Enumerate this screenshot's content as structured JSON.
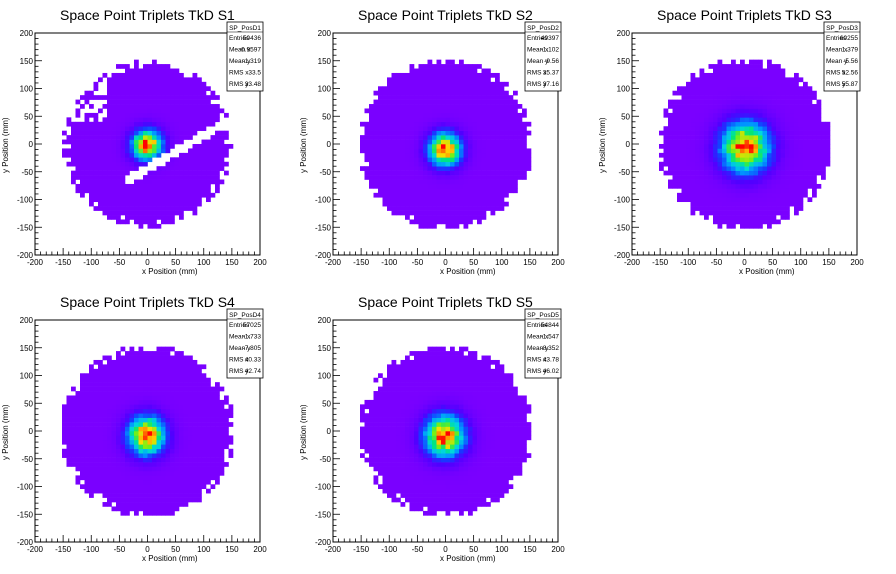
{
  "chart_data": [
    {
      "type": "heatmap",
      "title": "Space Point Triplets TkD S1",
      "xlabel": "x Position (mm)",
      "ylabel": "y Position (mm)",
      "xlim": [
        -200,
        200
      ],
      "ylim": [
        -200,
        200
      ],
      "xticks": [
        "-200",
        "-150",
        "-100",
        "-50",
        "0",
        "50",
        "100",
        "150",
        "200"
      ],
      "yticks": [
        "-200",
        "-150",
        "-100",
        "-50",
        "0",
        "50",
        "100",
        "150",
        "200"
      ],
      "stats": {
        "name": "SP_PosD1",
        "rows": [
          {
            "label": "Entries",
            "value": "50436"
          },
          {
            "label": "Mean x",
            "value": "-0.9597"
          },
          {
            "label": "Mean y",
            "value": "-1.319"
          },
          {
            "label": "RMS x",
            "value": "33.5"
          },
          {
            "label": "RMS y",
            "value": "33.48"
          }
        ]
      },
      "distribution": {
        "mean_x": -0.9597,
        "mean_y": -1.319,
        "rms_x": 33.5,
        "rms_y": 33.48,
        "extent_mm": 150,
        "gap_band": true
      }
    },
    {
      "type": "heatmap",
      "title": "Space Point Triplets TkD S2",
      "xlabel": "x Position (mm)",
      "ylabel": "y Position (mm)",
      "xlim": [
        -200,
        200
      ],
      "ylim": [
        -200,
        200
      ],
      "xticks": [
        "-200",
        "-150",
        "-100",
        "-50",
        "0",
        "50",
        "100",
        "150",
        "200"
      ],
      "yticks": [
        "-200",
        "-150",
        "-100",
        "-50",
        "0",
        "50",
        "100",
        "150",
        "200"
      ],
      "stats": {
        "name": "SP_PosD2",
        "rows": [
          {
            "label": "Entries",
            "value": "49397"
          },
          {
            "label": "Mean x",
            "value": "-1.102"
          },
          {
            "label": "Mean y",
            "value": "-9.56"
          },
          {
            "label": "RMS x",
            "value": "35.37"
          },
          {
            "label": "RMS y",
            "value": "37.16"
          }
        ]
      },
      "distribution": {
        "mean_x": -1.102,
        "mean_y": -9.56,
        "rms_x": 35.37,
        "rms_y": 37.16,
        "extent_mm": 155,
        "gap_band": false
      }
    },
    {
      "type": "heatmap",
      "title": "Space Point Triplets TkD S3",
      "xlabel": "x Position (mm)",
      "ylabel": "y Position (mm)",
      "xlim": [
        -200,
        200
      ],
      "ylim": [
        -200,
        200
      ],
      "xticks": [
        "-200",
        "-150",
        "-100",
        "-50",
        "0",
        "50",
        "100",
        "150",
        "200"
      ],
      "yticks": [
        "-200",
        "-150",
        "-100",
        "-50",
        "0",
        "50",
        "100",
        "150",
        "200"
      ],
      "stats": {
        "name": "SP_PosD3",
        "rows": [
          {
            "label": "Entries",
            "value": "60255"
          },
          {
            "label": "Mean x",
            "value": "1.379"
          },
          {
            "label": "Mean y",
            "value": "-5.56"
          },
          {
            "label": "RMS x",
            "value": "52.56"
          },
          {
            "label": "RMS y",
            "value": "55.87"
          }
        ]
      },
      "distribution": {
        "mean_x": 1.379,
        "mean_y": -5.56,
        "rms_x": 52.56,
        "rms_y": 55.87,
        "extent_mm": 155,
        "gap_band": false
      }
    },
    {
      "type": "heatmap",
      "title": "Space Point Triplets TkD S4",
      "xlabel": "x Position (mm)",
      "ylabel": "y Position (mm)",
      "xlim": [
        -200,
        200
      ],
      "ylim": [
        -200,
        200
      ],
      "xticks": [
        "-200",
        "-150",
        "-100",
        "-50",
        "0",
        "50",
        "100",
        "150",
        "200"
      ],
      "yticks": [
        "-200",
        "-150",
        "-100",
        "-50",
        "0",
        "50",
        "100",
        "150",
        "200"
      ],
      "stats": {
        "name": "SP_PosD4",
        "rows": [
          {
            "label": "Entries",
            "value": "57025"
          },
          {
            "label": "Mean x",
            "value": "-1.733"
          },
          {
            "label": "Mean y",
            "value": "-7.805"
          },
          {
            "label": "RMS x",
            "value": "40.33"
          },
          {
            "label": "RMS y",
            "value": "42.74"
          }
        ]
      },
      "distribution": {
        "mean_x": -1.733,
        "mean_y": -7.805,
        "rms_x": 40.33,
        "rms_y": 42.74,
        "extent_mm": 155,
        "gap_band": false
      }
    },
    {
      "type": "heatmap",
      "title": "Space Point Triplets TkD S5",
      "xlabel": "x Position (mm)",
      "ylabel": "y Position (mm)",
      "xlim": [
        -200,
        200
      ],
      "ylim": [
        -200,
        200
      ],
      "xticks": [
        "-200",
        "-150",
        "-100",
        "-50",
        "0",
        "50",
        "100",
        "150",
        "200"
      ],
      "yticks": [
        "-200",
        "-150",
        "-100",
        "-50",
        "0",
        "50",
        "100",
        "150",
        "200"
      ],
      "stats": {
        "name": "SP_PosD5",
        "rows": [
          {
            "label": "Entries",
            "value": "54844"
          },
          {
            "label": "Mean x",
            "value": "-1.547"
          },
          {
            "label": "Mean y",
            "value": "-8.352"
          },
          {
            "label": "RMS x",
            "value": "43.78"
          },
          {
            "label": "RMS y",
            "value": "46.02"
          }
        ]
      },
      "distribution": {
        "mean_x": -1.547,
        "mean_y": -8.352,
        "rms_x": 43.78,
        "rms_y": 46.02,
        "extent_mm": 155,
        "gap_band": false
      }
    }
  ]
}
